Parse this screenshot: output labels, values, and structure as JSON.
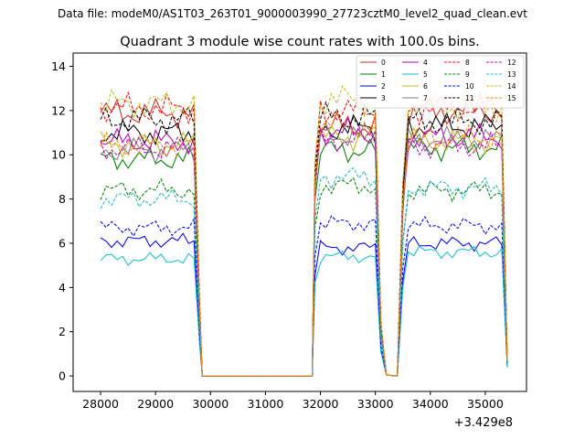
{
  "figure": {
    "suptitle": "Data file: modeM0/AS1T03_263T01_9000003990_27723cztM0_level2_quad_clean.evt",
    "title": "Quadrant 3 module wise count rates with 100.0s bins.",
    "x_offset_label": "+3.429e8"
  },
  "chart_data": {
    "type": "line",
    "title": "Quadrant 3 module wise count rates with 100.0s bins.",
    "xlabel": "",
    "ylabel": "",
    "x_offset": 342900000,
    "xlim": [
      27500,
      35750
    ],
    "ylim": [
      -0.7,
      14.6
    ],
    "xticks": [
      28000,
      29000,
      30000,
      31000,
      32000,
      33000,
      34000,
      35000
    ],
    "yticks": [
      0,
      2,
      4,
      6,
      8,
      10,
      12,
      14
    ],
    "grid": false,
    "legend_position": "top-right",
    "segments": [
      {
        "start": 28000,
        "end": 29800,
        "step": 100
      },
      {
        "start": 29850,
        "end": 31850,
        "step": 2000
      },
      {
        "start": 31900,
        "end": 33100,
        "step": 100
      },
      {
        "start": 33200,
        "end": 33400,
        "step": 100
      },
      {
        "start": 33500,
        "end": 35400,
        "step": 100
      }
    ],
    "series": [
      {
        "name": "0",
        "color": "#d62728",
        "dash": false,
        "levels": [
          11.9,
          11.3,
          11.6,
          12.0,
          0.7
        ]
      },
      {
        "name": "1",
        "color": "#008000",
        "dash": false,
        "levels": [
          9.8,
          10.2,
          10.4,
          10.3,
          0.6
        ]
      },
      {
        "name": "2",
        "color": "#0000ff",
        "dash": false,
        "levels": [
          6.1,
          5.8,
          6.2,
          6.0,
          0.4
        ]
      },
      {
        "name": "3",
        "color": "#000000",
        "dash": false,
        "levels": [
          11.0,
          11.2,
          11.5,
          11.3,
          0.7
        ]
      },
      {
        "name": "4",
        "color": "#bf00bf",
        "dash": false,
        "levels": [
          10.6,
          11.0,
          11.2,
          10.8,
          0.7
        ]
      },
      {
        "name": "5",
        "color": "#17becf",
        "dash": false,
        "levels": [
          5.3,
          5.4,
          5.8,
          5.6,
          0.4
        ]
      },
      {
        "name": "6",
        "color": "#bcbd22",
        "dash": false,
        "levels": [
          10.5,
          10.8,
          10.9,
          10.6,
          0.7
        ]
      },
      {
        "name": "7",
        "color": "#7f7f7f",
        "dash": false,
        "levels": [
          10.2,
          10.9,
          11.0,
          10.7,
          0.7
        ]
      },
      {
        "name": "8",
        "color": "#ff0000",
        "dash": true,
        "levels": [
          12.1,
          12.0,
          12.4,
          12.1,
          0.7
        ]
      },
      {
        "name": "9",
        "color": "#008000",
        "dash": true,
        "levels": [
          8.4,
          8.6,
          8.9,
          8.4,
          0.5
        ]
      },
      {
        "name": "10",
        "color": "#0000ff",
        "dash": true,
        "levels": [
          6.7,
          6.9,
          7.1,
          6.8,
          0.5
        ]
      },
      {
        "name": "11",
        "color": "#000000",
        "dash": true,
        "levels": [
          11.6,
          11.7,
          11.8,
          11.5,
          0.7
        ]
      },
      {
        "name": "12",
        "color": "#bf00bf",
        "dash": true,
        "levels": [
          10.3,
          10.7,
          10.9,
          10.4,
          0.7
        ]
      },
      {
        "name": "13",
        "color": "#17becf",
        "dash": true,
        "levels": [
          8.0,
          9.0,
          9.0,
          8.5,
          0.5
        ]
      },
      {
        "name": "14",
        "color": "#bcbd22",
        "dash": true,
        "levels": [
          12.3,
          12.5,
          12.8,
          12.2,
          0.7
        ]
      },
      {
        "name": "15",
        "color": "#ff7f0e",
        "dash": true,
        "levels": [
          10.4,
          11.3,
          11.0,
          10.8,
          0.7
        ]
      }
    ]
  }
}
